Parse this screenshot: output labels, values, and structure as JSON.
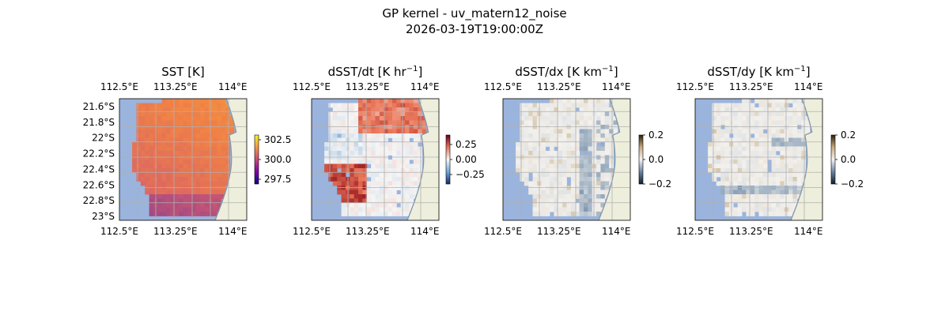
{
  "figure": {
    "title": "GP kernel - uv_matern12_noise",
    "subtitle": "2026-03-19T19:00:00Z"
  },
  "colors": {
    "ocean_missing": "#9ab4dd",
    "land": "#eeeedc",
    "coast": "#8096aa",
    "grid": "#b0b0b0"
  },
  "chart_data": [
    {
      "type": "heatmap",
      "title": "SST [K]",
      "x_ticks": [
        "112.5°E",
        "113.25°E",
        "114°E"
      ],
      "y_ticks": [
        "21.6°S",
        "21.8°S",
        "22°S",
        "22.2°S",
        "22.4°S",
        "22.6°S",
        "22.8°S",
        "23°S"
      ],
      "y_tick_values": [
        -21.6,
        -21.8,
        -22.0,
        -22.2,
        -22.4,
        -22.6,
        -22.8,
        -23.0
      ],
      "xlim": [
        112.5,
        114.2
      ],
      "ylim": [
        -23.05,
        -21.5
      ],
      "colormap": "plasma-like",
      "colorbar": {
        "ticks": [
          "302.5",
          "300.0",
          "297.5"
        ],
        "range": [
          297.0,
          303.5
        ]
      }
    },
    {
      "type": "heatmap",
      "title": "dSST/dt [K hr",
      "title_unit_sup": "−1",
      "title_close": "]",
      "x_ticks": [
        "112.5°E",
        "113.25°E",
        "114°E"
      ],
      "xlim": [
        112.5,
        114.2
      ],
      "ylim": [
        -23.05,
        -21.5
      ],
      "colormap": "diverging red-blue",
      "colorbar": {
        "ticks": [
          "0.25",
          "0.00",
          "−0.25"
        ],
        "range": [
          -0.4,
          0.4
        ]
      }
    },
    {
      "type": "heatmap",
      "title": "dSST/dx [K km",
      "title_unit_sup": "−1",
      "title_close": "]",
      "x_ticks": [
        "112.5°E",
        "113.25°E",
        "114°E"
      ],
      "xlim": [
        112.5,
        114.2
      ],
      "ylim": [
        -23.05,
        -21.5
      ],
      "colormap": "diverging brown-blue",
      "colorbar": {
        "ticks": [
          "0.2",
          "0.0",
          "−0.2"
        ],
        "range": [
          -0.2,
          0.2
        ]
      }
    },
    {
      "type": "heatmap",
      "title": "dSST/dy [K km",
      "title_unit_sup": "−1",
      "title_close": "]",
      "x_ticks": [
        "112.5°E",
        "113.25°E",
        "114°E"
      ],
      "xlim": [
        112.5,
        114.2
      ],
      "ylim": [
        -23.05,
        -21.5
      ],
      "colormap": "diverging brown-blue",
      "colorbar": {
        "ticks": [
          "0.2",
          "0.0",
          "−0.2"
        ],
        "range": [
          -0.2,
          0.2
        ]
      }
    }
  ]
}
